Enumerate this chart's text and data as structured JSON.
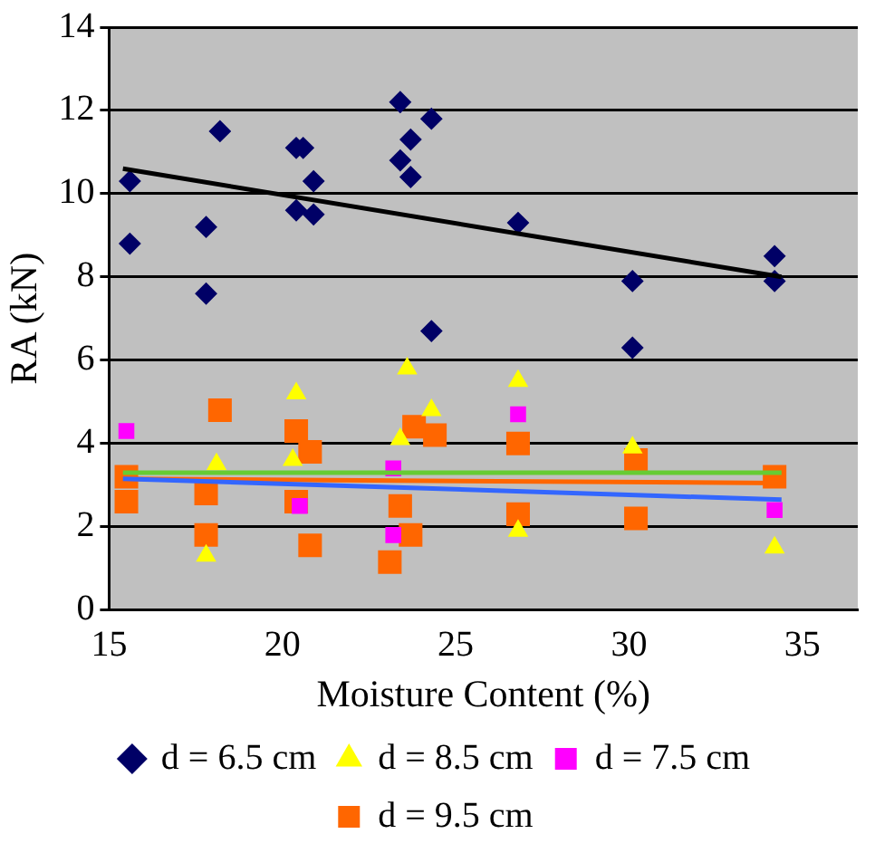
{
  "chart_data": {
    "type": "scatter",
    "xlabel": "Moisture Content (%)",
    "ylabel": "RA (kN)",
    "xlim": [
      15,
      36.6
    ],
    "xticks": [
      15,
      20,
      25,
      30,
      35
    ],
    "ylim": [
      0,
      14
    ],
    "yticks": [
      0,
      2,
      4,
      6,
      8,
      10,
      12,
      14
    ],
    "grid": "y",
    "legend": "bottom",
    "series": [
      {
        "name": "d = 6.5 cm",
        "color": "#000066",
        "marker": "diamond",
        "x": [
          15.6,
          15.6,
          18.2,
          17.8,
          17.8,
          20.4,
          20.6,
          20.4,
          20.9,
          20.9,
          23.4,
          23.4,
          23.7,
          23.7,
          24.3,
          24.3,
          26.8,
          30.1,
          30.1,
          34.2,
          34.2
        ],
        "values": [
          10.3,
          8.8,
          11.5,
          9.2,
          7.6,
          11.1,
          11.1,
          9.6,
          9.5,
          10.3,
          12.2,
          10.8,
          10.4,
          11.3,
          11.8,
          6.7,
          9.3,
          7.9,
          6.3,
          8.5,
          7.9
        ]
      },
      {
        "name": "d = 8.5 cm",
        "color": "#ffff00",
        "marker": "triangle",
        "x": [
          18.1,
          20.4,
          20.3,
          23.6,
          23.4,
          24.3,
          26.8,
          26.8,
          30.1,
          34.2,
          17.8
        ],
        "values": [
          3.5,
          5.2,
          3.6,
          5.8,
          4.1,
          4.8,
          5.5,
          1.9,
          3.9,
          1.5,
          1.3
        ]
      },
      {
        "name": "d = 7.5 cm",
        "color": "#ff00ff",
        "marker": "square",
        "x": [
          15.5,
          20.5,
          23.2,
          23.2,
          26.8,
          34.2
        ],
        "values": [
          4.3,
          2.5,
          3.4,
          1.8,
          4.7,
          2.4
        ]
      },
      {
        "name": "d = 9.5 cm",
        "color": "#ff6600",
        "marker": "square",
        "x": [
          15.5,
          15.5,
          18.2,
          17.8,
          17.8,
          20.4,
          20.4,
          20.8,
          20.8,
          23.1,
          23.4,
          23.7,
          23.8,
          24.4,
          26.8,
          26.8,
          30.2,
          30.2,
          34.2
        ],
        "values": [
          3.2,
          2.6,
          4.8,
          2.8,
          1.8,
          4.3,
          2.6,
          3.8,
          1.55,
          1.15,
          2.5,
          1.8,
          4.4,
          4.2,
          4.0,
          2.3,
          3.6,
          2.2,
          3.2
        ]
      },
      {
        "type": "line",
        "color": "#000000",
        "marker": "none",
        "x": [
          15.4,
          34.4
        ],
        "values": [
          10.6,
          8.0
        ]
      },
      {
        "type": "line",
        "color": "#66cc33",
        "marker": "none",
        "x": [
          15.4,
          34.4
        ],
        "values": [
          3.3,
          3.3
        ]
      },
      {
        "type": "line",
        "color": "#3366ff",
        "marker": "none",
        "x": [
          15.4,
          34.4
        ],
        "values": [
          3.15,
          2.65
        ]
      },
      {
        "type": "line",
        "color": "#ff6600",
        "marker": "none",
        "x": [
          15.4,
          34.4
        ],
        "values": [
          3.15,
          3.05
        ]
      }
    ]
  }
}
